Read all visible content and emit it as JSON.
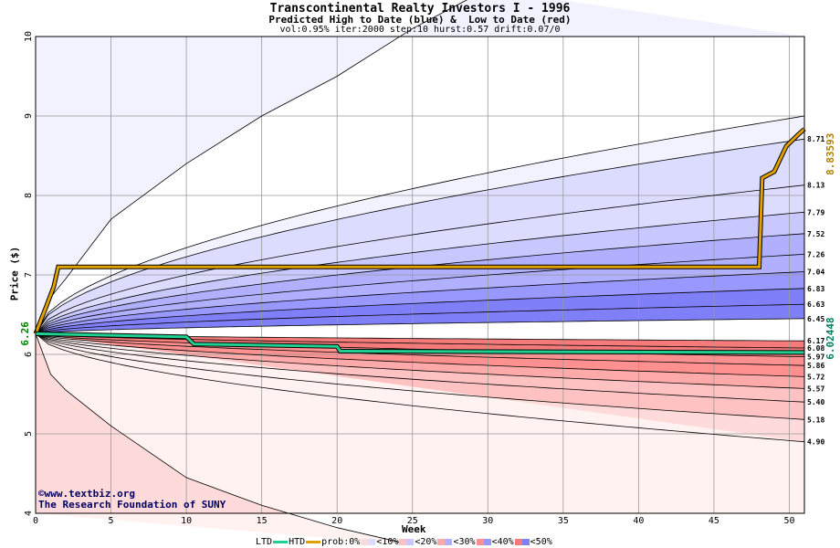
{
  "title": "Transcontinental Realty Investors I - 1996",
  "subtitle": "Predicted High to Date (blue) &  Low to Date (red)",
  "params": "vol:0.95% iter:2000 step:10 hurst:0.57 drift:0.07/0",
  "credit_line1": "©www.textbiz.org",
  "credit_line2": "The Research Foundation of SUNY",
  "legend": {
    "ltd": "LTD",
    "htd": "HTD",
    "prob": "prob:0%",
    "b10": "<10%",
    "b20": "<20%",
    "b30": "<30%",
    "b40": "<40%",
    "b50": "<50%"
  },
  "colors": {
    "ltd_line": "#20d090",
    "htd_line": "#e0a000",
    "blue_bands": [
      "#f2f2ff",
      "#dcdcff",
      "#c8c8ff",
      "#b0b0ff",
      "#9898ff",
      "#7f7ff8"
    ],
    "red_bands": [
      "#fff2f0",
      "#ffdada",
      "#ffc2c2",
      "#ffaaaa",
      "#ff9090",
      "#f57a7a"
    ],
    "start_label": "#008000",
    "ltd_final_label": "#008060",
    "htd_final_label": "#b08000"
  },
  "chart_data": {
    "type": "area",
    "xlabel": "Week",
    "ylabel": "Price ($)",
    "xlim": [
      0,
      51
    ],
    "ylim": [
      4,
      10
    ],
    "x_ticks": [
      0,
      5,
      10,
      15,
      20,
      25,
      30,
      35,
      40,
      45,
      50
    ],
    "y_ticks": [
      4,
      5,
      6,
      7,
      8,
      9,
      10
    ],
    "grid": true,
    "start_price": 6.26,
    "start_label": "6.26",
    "htd_final": 8.83593,
    "htd_final_label": "8.83593",
    "ltd_final": 6.02448,
    "ltd_final_label": "6.02448",
    "high_quantile_final": [
      9.0,
      8.71,
      8.13,
      7.79,
      7.52,
      7.26,
      7.04,
      6.83,
      6.63,
      6.45
    ],
    "high_quantile_labels": [
      "8.71",
      "8.13",
      "7.79",
      "7.52",
      "7.26",
      "7.04",
      "6.83",
      "6.63",
      "6.45"
    ],
    "low_quantile_final": [
      6.17,
      6.08,
      5.97,
      5.86,
      5.72,
      5.57,
      5.4,
      5.18,
      4.9
    ],
    "low_quantile_labels": [
      "6.17",
      "6.08",
      "5.97",
      "5.86",
      "5.72",
      "5.57",
      "5.40",
      "5.18",
      "4.90"
    ],
    "outer_high_envelope": [
      [
        0,
        6.26
      ],
      [
        1,
        6.72
      ],
      [
        2,
        6.95
      ],
      [
        5,
        7.7
      ],
      [
        10,
        8.4
      ],
      [
        15,
        9.0
      ],
      [
        20,
        9.5
      ],
      [
        25,
        10.1
      ],
      [
        30,
        10.6
      ]
    ],
    "outer_low_envelope": [
      [
        0,
        6.26
      ],
      [
        1,
        5.75
      ],
      [
        2,
        5.55
      ],
      [
        5,
        5.1
      ],
      [
        10,
        4.45
      ],
      [
        15,
        4.1
      ],
      [
        20,
        3.82
      ],
      [
        25,
        3.6
      ]
    ],
    "htd_series": [
      [
        0,
        6.26
      ],
      [
        0.7,
        6.6
      ],
      [
        1.2,
        6.85
      ],
      [
        1.5,
        7.1
      ],
      [
        48,
        7.1
      ],
      [
        48.2,
        8.22
      ],
      [
        49,
        8.3
      ],
      [
        49.8,
        8.62
      ],
      [
        50.5,
        8.75
      ],
      [
        51,
        8.83593
      ]
    ],
    "ltd_series": [
      [
        0,
        6.26
      ],
      [
        10,
        6.22
      ],
      [
        10.5,
        6.13
      ],
      [
        20,
        6.1
      ],
      [
        20.2,
        6.04
      ],
      [
        51,
        6.02448
      ]
    ]
  }
}
